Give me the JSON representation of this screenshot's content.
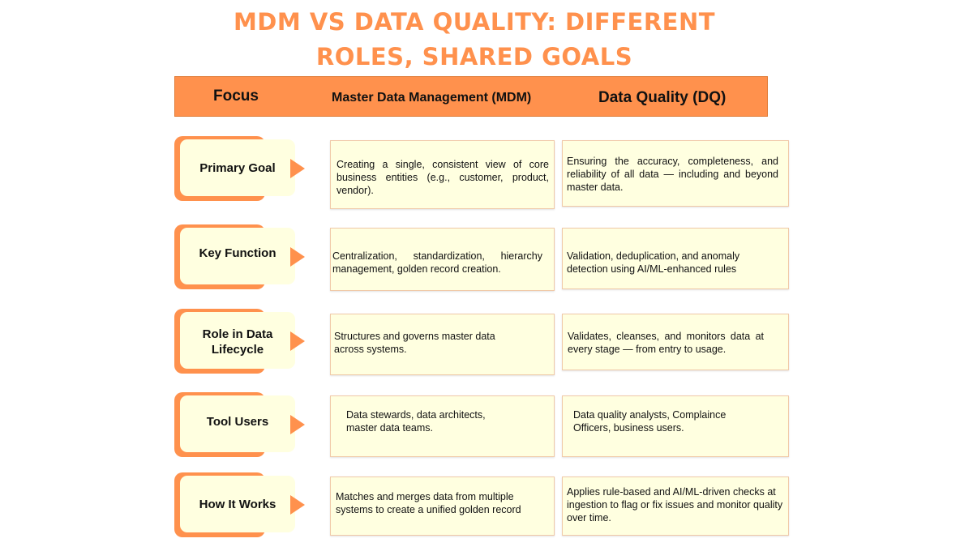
{
  "title": {
    "line1": "MDM VS DATA QUALITY: DIFFERENT",
    "line2": "ROLES, SHARED GOALS"
  },
  "header": {
    "focus": "Focus",
    "mdm": "Master Data Management (MDM)",
    "dq": "Data Quality (DQ)"
  },
  "rows": [
    {
      "focus": "Primary Goal",
      "mdm": "Creating a single, consistent view of core business entities (e.g., customer, product, vendor).",
      "dq": "Ensuring the accuracy, completeness, and reliability of all data — including and beyond master data."
    },
    {
      "focus": "Key Function",
      "mdm": "Centralization, standardization, hierarchy management, golden record creation.",
      "dq": "Validation, deduplication, and anomaly detection using AI/ML-enhanced rules"
    },
    {
      "focus": "Role in Data Lifecycle",
      "mdm": "Structures and governs master data across systems.",
      "dq": "Validates, cleanses, and monitors data at every stage — from entry to usage."
    },
    {
      "focus": "Tool Users",
      "mdm": "Data stewards, data architects, master data teams.",
      "dq": "Data quality analysts, Complaince Officers, business users."
    },
    {
      "focus": "How It Works",
      "mdm": "Matches and merges data from multiple systems to create a unified golden record",
      "dq": "Applies rule-based and AI/ML-driven checks at ingestion to flag or fix issues and monitor quality over time."
    }
  ]
}
